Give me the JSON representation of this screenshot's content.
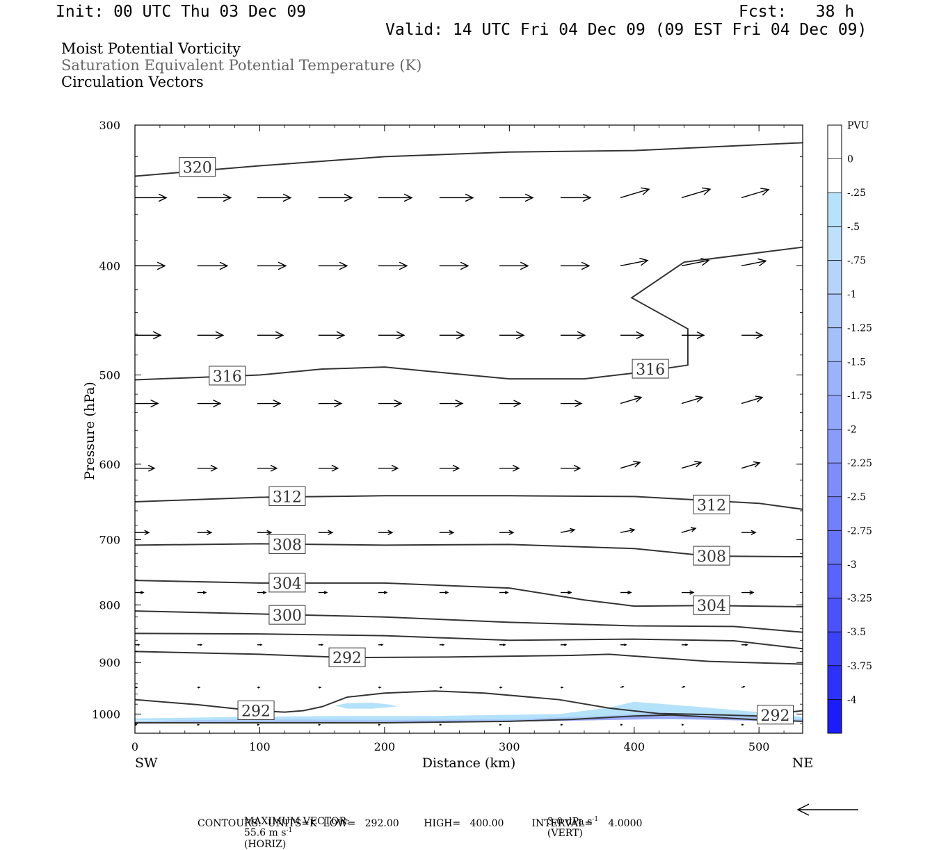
{
  "header": {
    "init": "Init: 00 UTC Thu 03 Dec 09",
    "fcst": "Fcst:   38 h",
    "valid": "Valid: 14 UTC Fri 04 Dec 09 (09 EST Fri 04 Dec 09)",
    "fields": [
      "Moist Potential Vorticity",
      "Saturation Equivalent Potential Temperature (K)",
      "Circulation Vectors"
    ]
  },
  "footer": {
    "max_vector_label": "MAXIMUM VECTOR:",
    "horiz_value": "55.6 m s",
    "horiz_unit": "(HORIZ)",
    "vert_value": "3.0 dPa s",
    "vert_unit": "(VERT)",
    "exponent": "-1",
    "contours": "CONTOURS:  UNITS=K  LOW=   292.00        HIGH=   400.00         INTERVAL=     4.0000"
  },
  "colorbar": {
    "unit": "PVU",
    "labels": [
      "0",
      "-.25",
      "-.5",
      "-.75",
      "-1",
      "-1.25",
      "-1.5",
      "-1.75",
      "-2",
      "-2.25",
      "-2.5",
      "-2.75",
      "-3",
      "-3.25",
      "-3.5",
      "-3.75",
      "-4"
    ],
    "colors": [
      "#ffffff",
      "#ffffff",
      "#b7e2fb",
      "#bfe0fb",
      "#b6d4fb",
      "#adcafb",
      "#a4c0fb",
      "#9bb3fb",
      "#92a7fb",
      "#8a9cfb",
      "#7f8cfb",
      "#7380fb",
      "#6673fb",
      "#5a63fb",
      "#4b52fb",
      "#3c42fb",
      "#2c31fb",
      "#1a1cfb"
    ]
  },
  "chart_data": {
    "type": "cross-section",
    "title": "",
    "xlabel": "Distance (km)",
    "ylabel": "Pressure (hPa)",
    "x_end_labels": [
      "SW",
      "NE"
    ],
    "xlim": [
      0,
      535
    ],
    "ylim": [
      300,
      1040
    ],
    "y_log": true,
    "x_ticks": [
      0,
      100,
      200,
      300,
      400,
      500
    ],
    "y_ticks": [
      300,
      400,
      500,
      600,
      700,
      800,
      900,
      1000
    ],
    "contours": [
      {
        "value": "320",
        "points": [
          [
            0,
            333
          ],
          [
            100,
            326
          ],
          [
            200,
            320
          ],
          [
            300,
            317
          ],
          [
            400,
            316
          ],
          [
            535,
            311
          ]
        ],
        "labels": [
          [
            50,
            327
          ]
        ]
      },
      {
        "value": "316",
        "points": [
          [
            0,
            505
          ],
          [
            100,
            500
          ],
          [
            150,
            494
          ],
          [
            200,
            492
          ],
          [
            250,
            498
          ],
          [
            300,
            504
          ],
          [
            360,
            504
          ],
          [
            400,
            498
          ],
          [
            443,
            490
          ],
          [
            443,
            455
          ],
          [
            398,
            427
          ],
          [
            440,
            397
          ],
          [
            535,
            385
          ]
        ],
        "labels": [
          [
            74,
            501
          ],
          [
            413,
            494
          ]
        ]
      },
      {
        "value": "312",
        "points": [
          [
            0,
            648
          ],
          [
            100,
            642
          ],
          [
            200,
            640
          ],
          [
            300,
            640
          ],
          [
            400,
            641
          ],
          [
            500,
            650
          ],
          [
            535,
            658
          ]
        ],
        "labels": [
          [
            122,
            641
          ],
          [
            462,
            652
          ]
        ]
      },
      {
        "value": "308",
        "points": [
          [
            0,
            708
          ],
          [
            100,
            706
          ],
          [
            200,
            708
          ],
          [
            300,
            707
          ],
          [
            400,
            713
          ],
          [
            460,
            724
          ],
          [
            535,
            725
          ]
        ],
        "labels": [
          [
            122,
            707
          ],
          [
            462,
            724
          ]
        ]
      },
      {
        "value": "304",
        "points": [
          [
            0,
            761
          ],
          [
            100,
            765
          ],
          [
            200,
            765
          ],
          [
            300,
            773
          ],
          [
            360,
            792
          ],
          [
            400,
            802
          ],
          [
            460,
            801
          ],
          [
            535,
            803
          ]
        ],
        "labels": [
          [
            122,
            765
          ],
          [
            462,
            801
          ]
        ]
      },
      {
        "value": "300",
        "points": [
          [
            0,
            810
          ],
          [
            100,
            815
          ],
          [
            200,
            820
          ],
          [
            300,
            829
          ],
          [
            400,
            835
          ],
          [
            480,
            836
          ],
          [
            535,
            846
          ]
        ],
        "labels": [
          [
            122,
            817
          ]
        ]
      },
      {
        "value": "",
        "points": [
          [
            0,
            848
          ],
          [
            100,
            849
          ],
          [
            200,
            852
          ],
          [
            300,
            860
          ],
          [
            400,
            858
          ],
          [
            480,
            861
          ],
          [
            535,
            875
          ]
        ],
        "labels": []
      },
      {
        "value": "292",
        "points": [
          [
            0,
            880
          ],
          [
            100,
            885
          ],
          [
            170,
            891
          ],
          [
            250,
            890
          ],
          [
            350,
            887
          ],
          [
            380,
            885
          ],
          [
            460,
            898
          ],
          [
            535,
            903
          ]
        ],
        "labels": [
          [
            170,
            891
          ]
        ]
      },
      {
        "value": "292",
        "points": [
          [
            0,
            971
          ],
          [
            50,
            981
          ],
          [
            95,
            993
          ],
          [
            120,
            996
          ],
          [
            135,
            993
          ],
          [
            150,
            985
          ],
          [
            170,
            966
          ],
          [
            200,
            958
          ],
          [
            240,
            954
          ],
          [
            280,
            958
          ],
          [
            340,
            971
          ],
          [
            380,
            988
          ],
          [
            420,
            999
          ],
          [
            460,
            1001
          ],
          [
            500,
            1004
          ],
          [
            535,
            993
          ]
        ],
        "labels": [
          [
            97,
            993
          ],
          [
            513,
            1002
          ]
        ]
      },
      {
        "value": "",
        "points": [
          [
            0,
            1018
          ],
          [
            100,
            1018
          ],
          [
            200,
            1018
          ],
          [
            300,
            1015
          ],
          [
            350,
            1011
          ],
          [
            400,
            1004
          ],
          [
            430,
            1002
          ],
          [
            460,
            1006
          ],
          [
            500,
            1012
          ],
          [
            535,
            1015
          ]
        ],
        "labels": []
      }
    ],
    "pv_shading": [
      {
        "pvu": "-0.5",
        "points": [
          [
            0,
            1009
          ],
          [
            80,
            1006
          ],
          [
            160,
            1004
          ],
          [
            240,
            1004
          ],
          [
            340,
            1000
          ],
          [
            380,
            987
          ],
          [
            400,
            975
          ],
          [
            440,
            983
          ],
          [
            500,
            996
          ],
          [
            535,
            1006
          ],
          [
            535,
            1014
          ],
          [
            400,
            1010
          ],
          [
            300,
            1012
          ],
          [
            200,
            1013
          ],
          [
            100,
            1013
          ],
          [
            0,
            1013
          ]
        ]
      },
      {
        "pvu": "-0.5",
        "points": [
          [
            160,
            983
          ],
          [
            170,
            978
          ],
          [
            190,
            977
          ],
          [
            205,
            981
          ],
          [
            210,
            985
          ],
          [
            190,
            989
          ],
          [
            170,
            989
          ]
        ]
      },
      {
        "pvu": "-1",
        "points": [
          [
            0,
            1014
          ],
          [
            100,
            1011
          ],
          [
            200,
            1012
          ],
          [
            300,
            1011
          ],
          [
            380,
            1003
          ],
          [
            420,
            997
          ],
          [
            480,
            1002
          ],
          [
            535,
            1010
          ],
          [
            535,
            1015
          ],
          [
            420,
            1009
          ],
          [
            300,
            1016
          ],
          [
            200,
            1018
          ],
          [
            100,
            1018
          ],
          [
            0,
            1019
          ]
        ]
      },
      {
        "pvu": "-1.75",
        "points": [
          [
            0,
            1017
          ],
          [
            100,
            1016
          ],
          [
            200,
            1016
          ],
          [
            300,
            1014
          ],
          [
            390,
            1007
          ],
          [
            430,
            1004
          ],
          [
            500,
            1010
          ],
          [
            535,
            1014
          ],
          [
            535,
            1016
          ],
          [
            430,
            1010
          ],
          [
            300,
            1016
          ],
          [
            200,
            1018
          ],
          [
            0,
            1019
          ]
        ]
      }
    ],
    "vectors": {
      "x": [
        0,
        50,
        98,
        147,
        195,
        244,
        292,
        341,
        389,
        438,
        486
      ],
      "rows": [
        {
          "p": 348,
          "len": [
            45,
            48,
            48,
            48,
            48,
            48,
            48,
            43,
            41,
            41,
            39
          ],
          "tilt": [
            0,
            0,
            0,
            0,
            0,
            0,
            0,
            0,
            -0.3,
            -0.3,
            -0.3
          ]
        },
        {
          "p": 400,
          "len": [
            43,
            43,
            41,
            41,
            41,
            41,
            41,
            41,
            39,
            39,
            35
          ],
          "tilt": [
            0,
            0,
            0,
            0,
            0,
            0,
            0,
            0,
            -0.2,
            -0.2,
            -0.2
          ]
        },
        {
          "p": 461,
          "len": [
            37,
            37,
            37,
            37,
            37,
            35,
            35,
            35,
            33,
            32,
            30
          ],
          "tilt": [
            0,
            0,
            0,
            0,
            0,
            0,
            0,
            0,
            0,
            0,
            0
          ]
        },
        {
          "p": 530,
          "len": [
            33,
            33,
            33,
            33,
            33,
            33,
            30,
            30,
            30,
            30,
            30
          ],
          "tilt": [
            0,
            0,
            0,
            0,
            0,
            0,
            0,
            0,
            -0.3,
            -0.3,
            -0.3
          ]
        },
        {
          "p": 605,
          "len": [
            28,
            28,
            28,
            28,
            28,
            28,
            28,
            28,
            28,
            28,
            26
          ],
          "tilt": [
            0,
            0,
            0,
            0,
            0,
            0,
            0,
            0,
            -0.3,
            -0.3,
            -0.3
          ]
        },
        {
          "p": 690,
          "len": [
            20,
            20,
            20,
            20,
            20,
            20,
            20,
            20,
            20,
            20,
            20
          ],
          "tilt": [
            0,
            0,
            0,
            0,
            0,
            0,
            0,
            -0.2,
            -0.2,
            -0.3,
            0
          ]
        },
        {
          "p": 780,
          "len": [
            12,
            12,
            12,
            12,
            12,
            12,
            12,
            15,
            15,
            17,
            17
          ],
          "tilt": [
            0,
            0,
            0,
            0,
            0,
            0,
            0,
            0,
            0,
            0,
            0
          ]
        },
        {
          "p": 868,
          "len": [
            6,
            6,
            6,
            6,
            6,
            6,
            8,
            8,
            8,
            8,
            8
          ],
          "tilt": [
            0,
            0,
            0,
            0,
            0,
            0,
            0,
            0,
            0,
            0,
            0
          ]
        },
        {
          "p": 947,
          "len": [
            3,
            3,
            3,
            3,
            3,
            3,
            3,
            3,
            4,
            4,
            4
          ],
          "tilt": [
            0,
            0,
            0,
            0,
            0,
            0,
            0,
            0,
            -0.3,
            -0.3,
            -0.3
          ]
        },
        {
          "p": 1022,
          "len": [
            2,
            2,
            2,
            2,
            2,
            2,
            2,
            2,
            2,
            2,
            2
          ],
          "tilt": [
            0,
            0,
            0,
            0,
            0,
            0,
            0,
            0,
            0,
            0,
            0
          ]
        }
      ]
    }
  }
}
